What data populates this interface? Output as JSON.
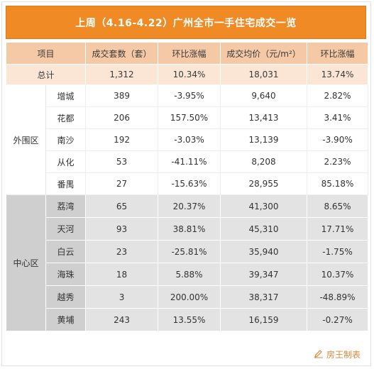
{
  "title": "上周（4.16-4.22）广州全市一手住宅成交一览",
  "headers": [
    "项目",
    "成交套数（套）",
    "环比涨幅",
    "成交均价（元/m²）",
    "环比涨幅"
  ],
  "total": {
    "label": "总计",
    "units": "1,312",
    "units_change": "10.34%",
    "price": "18,031",
    "price_change": "13.74%"
  },
  "outer": {
    "label": "外围区",
    "rows": [
      {
        "district": "增城",
        "units": "389",
        "units_change": "-3.95%",
        "price": "9,640",
        "price_change": "2.82%"
      },
      {
        "district": "花都",
        "units": "206",
        "units_change": "157.50%",
        "price": "13,413",
        "price_change": "3.41%"
      },
      {
        "district": "南沙",
        "units": "192",
        "units_change": "-3.03%",
        "price": "13,139",
        "price_change": "-3.90%"
      },
      {
        "district": "从化",
        "units": "53",
        "units_change": "-41.11%",
        "price": "8,208",
        "price_change": "2.23%"
      },
      {
        "district": "番禺",
        "units": "27",
        "units_change": "-15.63%",
        "price": "28,955",
        "price_change": "85.18%"
      }
    ]
  },
  "center": {
    "label": "中心区",
    "rows": [
      {
        "district": "荔湾",
        "units": "65",
        "units_change": "20.37%",
        "price": "41,300",
        "price_change": "8.65%"
      },
      {
        "district": "天河",
        "units": "93",
        "units_change": "38.81%",
        "price": "45,310",
        "price_change": "17.71%"
      },
      {
        "district": "白云",
        "units": "23",
        "units_change": "-25.81%",
        "price": "35,940",
        "price_change": "-1.75%"
      },
      {
        "district": "海珠",
        "units": "18",
        "units_change": "5.88%",
        "price": "39,347",
        "price_change": "10.37%"
      },
      {
        "district": "越秀",
        "units": "3",
        "units_change": "200.00%",
        "price": "38,317",
        "price_change": "-48.89%"
      },
      {
        "district": "黄埔",
        "units": "243",
        "units_change": "13.55%",
        "price": "16,159",
        "price_change": "-0.27%"
      }
    ]
  },
  "footer": {
    "source": "房王制表",
    "icon": "pencil-icon"
  },
  "colors": {
    "title_bg": "#f08a24",
    "header_bg": "#f6c9a6",
    "total_bg": "#fbe6d6",
    "center_bg": "#e3e3e3",
    "center_label_bg": "#cfcfcf",
    "footer_text": "#d9893a"
  }
}
